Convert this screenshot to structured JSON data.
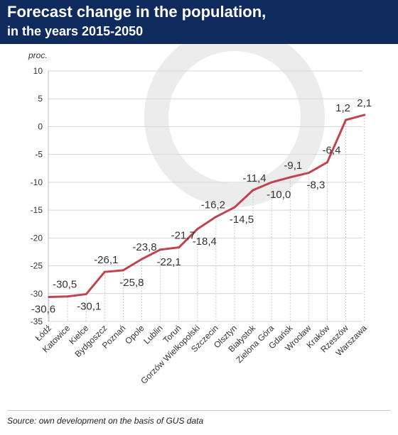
{
  "header": {
    "title_line1": "Forecast change in the population,",
    "title_line2": "in the years 2015-2050"
  },
  "footer": {
    "source": "Source: own development on the basis of GUS data"
  },
  "colors": {
    "header_bg": "#0f2a5c",
    "line": "#c0444f",
    "grid": "#d6d6d6"
  },
  "chart_data": {
    "type": "line",
    "title": "Forecast change in the population, in the years 2015-2050",
    "ylabel": "proc.",
    "xlabel": "",
    "ylim": [
      -35,
      10
    ],
    "yticks": [
      "10",
      "5",
      "0",
      "-5",
      "-10",
      "-15",
      "-20",
      "-25",
      "-30",
      "-35"
    ],
    "categories": [
      "Łódź",
      "Katowice",
      "Kielce",
      "Bydgoszcz",
      "Poznań",
      "Opole",
      "Lublin",
      "Toruń",
      "Gorzów Wielkopolski",
      "Szczecin",
      "Olsztyn",
      "Białystok",
      "Zielona Góra",
      "Gdańsk",
      "Wrocław",
      "Kraków",
      "Rzeszów",
      "Warszawa"
    ],
    "values": [
      -30.6,
      -30.5,
      -30.1,
      -26.1,
      -25.8,
      -23.8,
      -22.1,
      -21.7,
      -18.4,
      -16.2,
      -14.5,
      -11.4,
      -10.0,
      -9.1,
      -8.3,
      -6.4,
      1.2,
      2.1
    ],
    "data_labels": [
      "-30,6",
      "-30,5",
      "-30,1",
      "-26,1",
      "-25,8",
      "-23,8",
      "-22,1",
      "-21,7",
      "-18,4",
      "-16,2",
      "-14,5",
      "-11,4",
      "-10,0",
      "-9,1",
      "-8,3",
      "-6,4",
      "1,2",
      "2,1"
    ],
    "grid": true,
    "legend": "none"
  }
}
